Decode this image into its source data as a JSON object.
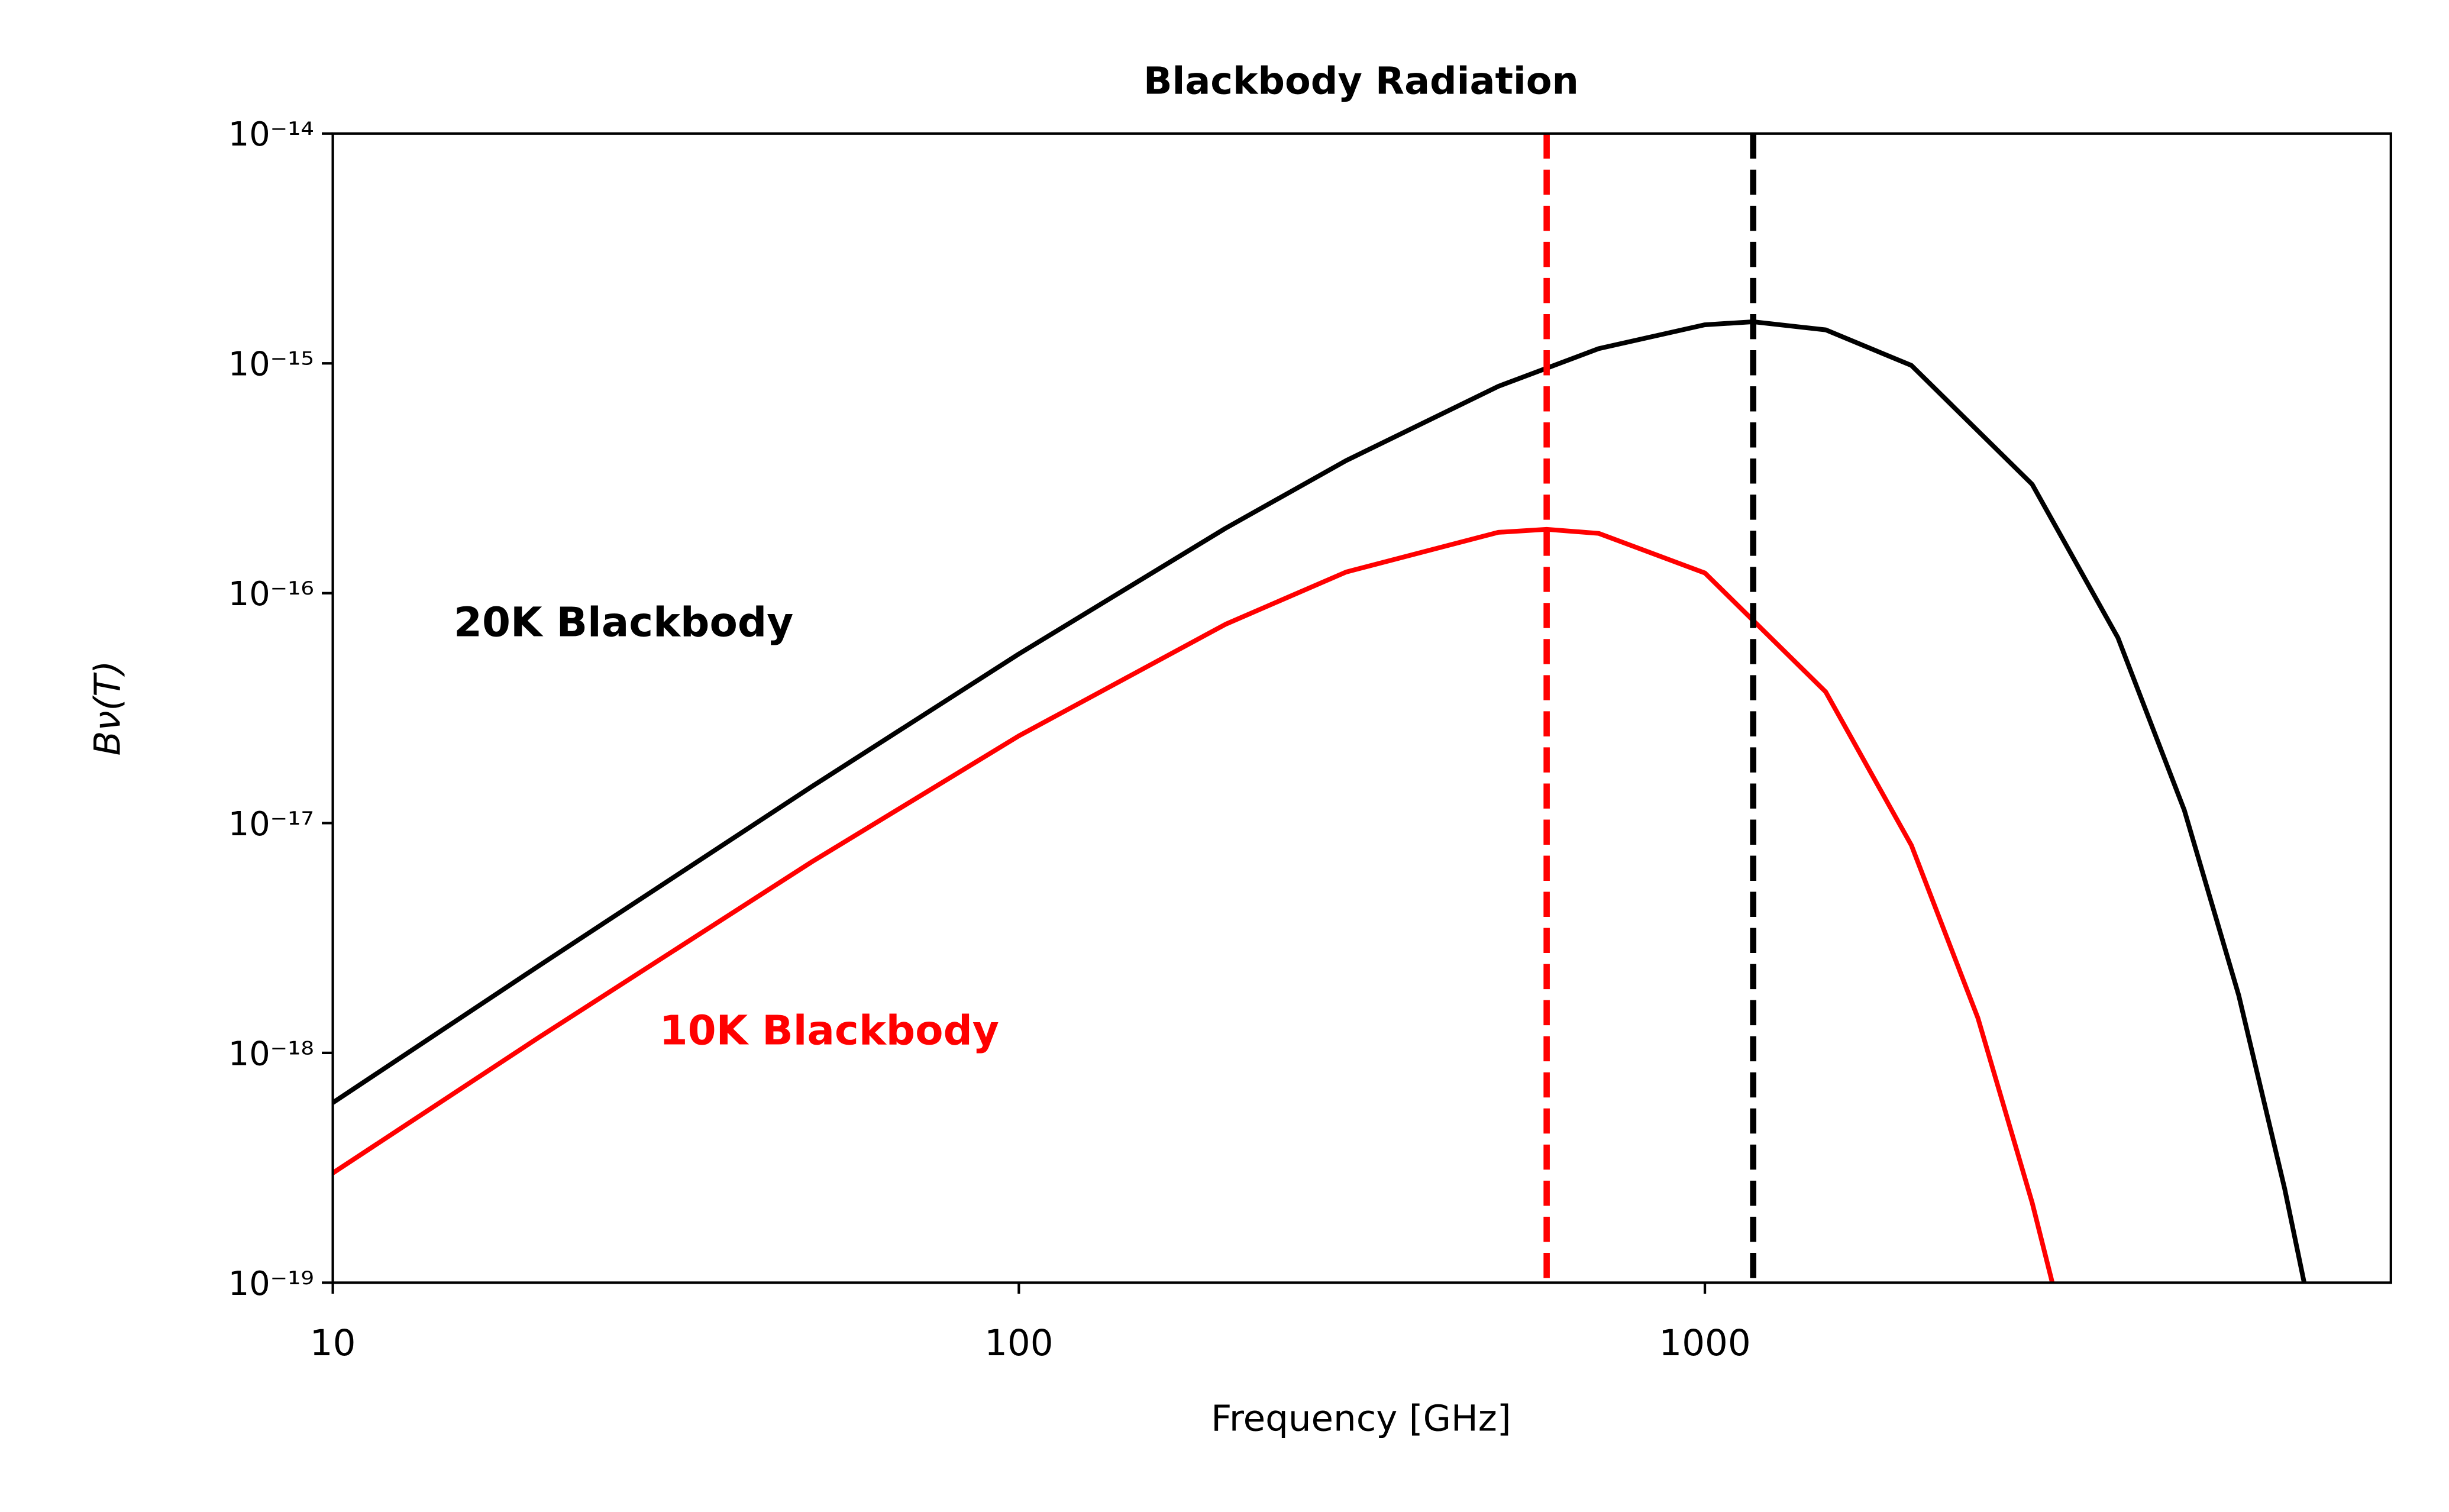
{
  "chart_data": {
    "type": "line",
    "title": "Blackbody Radiation",
    "x_label": "Frequency [GHz]",
    "y_label": "Bν(T)",
    "xscale": "log",
    "yscale": "log",
    "xlim": [
      10,
      10000
    ],
    "ylim": [
      1e-19,
      1e-14
    ],
    "xticks": [
      10,
      100,
      1000
    ],
    "yticks": [
      {
        "value": 1e-19,
        "label": "10⁻¹⁹"
      },
      {
        "value": 1e-18,
        "label": "10⁻¹⁸"
      },
      {
        "value": 1e-17,
        "label": "10⁻¹⁷"
      },
      {
        "value": 1e-16,
        "label": "10⁻¹⁶"
      },
      {
        "value": 1e-15,
        "label": "10⁻¹⁵"
      },
      {
        "value": 1e-14,
        "label": "10⁻¹⁴"
      }
    ],
    "grid": false,
    "series": [
      {
        "name": "20K Blackbody",
        "color": "#000000",
        "x": [
          10,
          20,
          50,
          100,
          200,
          300,
          500,
          700,
          1000,
          1176,
          1500,
          2000,
          3000,
          4000,
          5000,
          6000,
          7000,
          7500
        ],
        "values": [
          6.07e-19,
          2.4e-18,
          1.446e-17,
          5.44e-17,
          1.915e-16,
          3.777e-16,
          7.947e-16,
          1.159e-15,
          1.472e-15,
          1.517e-15,
          1.399e-15,
          9.8e-16,
          2.976e-16,
          6.4e-17,
          1.135e-17,
          1.781e-18,
          2.567e-19,
          9.52e-20
        ]
      },
      {
        "name": "10K Blackbody",
        "color": "#ff0000",
        "x": [
          10,
          20,
          50,
          100,
          200,
          300,
          500,
          588,
          700,
          1000,
          1500,
          2000,
          2500,
          3000,
          3200,
          3300
        ],
        "values": [
          3e-19,
          1.171e-18,
          6.8e-18,
          2.394e-17,
          7.32e-17,
          1.2365e-16,
          1.84e-16,
          1.896e-16,
          1.821e-16,
          1.2247e-16,
          3.722e-17,
          8e-18,
          1.419e-18,
          2.227e-19,
          1.035e-19,
          7.03e-20
        ]
      }
    ],
    "vlines": [
      {
        "x": 588,
        "color": "#ff0000"
      },
      {
        "x": 1176,
        "color": "#000000"
      }
    ]
  }
}
